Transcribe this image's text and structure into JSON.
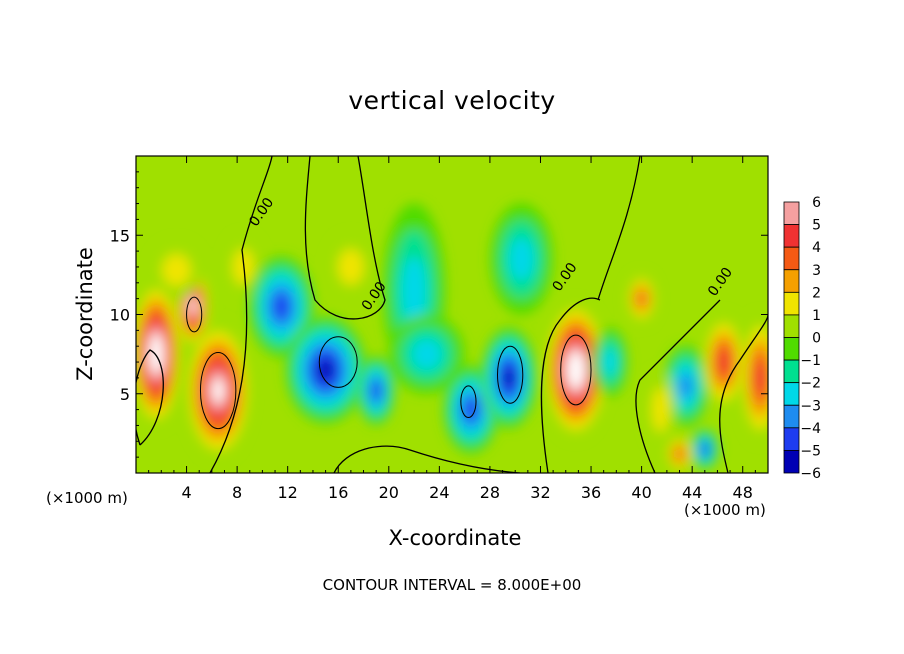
{
  "chart_data": {
    "type": "heatmap",
    "title": "vertical velocity",
    "xlabel": "X-coordinate",
    "ylabel": "Z-coordinate",
    "x_unit_label": "(×1000 m)",
    "contour_interval_text": "CONTOUR INTERVAL = 8.000E+00",
    "xlim": [
      0,
      50
    ],
    "ylim": [
      0,
      20
    ],
    "x_ticks": [
      4,
      8,
      12,
      16,
      20,
      24,
      28,
      32,
      36,
      40,
      44,
      48
    ],
    "y_ticks": [
      5,
      10,
      15
    ],
    "contour_labels": [
      {
        "text": "0.00",
        "x": 9.5,
        "y": 15.5
      },
      {
        "text": "0.00",
        "x": 18.4,
        "y": 10.2
      },
      {
        "text": "0.00",
        "x": 33.5,
        "y": 11.4
      },
      {
        "text": "0.00",
        "x": 45.8,
        "y": 11.1
      }
    ],
    "colorbar": {
      "ticks": [
        6,
        5,
        4,
        3,
        2,
        1,
        0,
        -1,
        -2,
        -3,
        -4,
        -5,
        -6
      ],
      "levels": [
        6,
        5,
        4,
        3,
        2,
        1,
        0,
        -1,
        -2,
        -3,
        -4,
        -5
      ],
      "colors": [
        "#f5a0a0",
        "#f03232",
        "#f55a14",
        "#f5a000",
        "#f0e400",
        "#a0e000",
        "#50dc00",
        "#00e090",
        "#00d8e8",
        "#1e8cf0",
        "#1e3cf0",
        "#0000b4"
      ],
      "below_min_color": "#7800a8"
    },
    "features": [
      {
        "x": 1.6,
        "y": 7.5,
        "rx": 2.0,
        "ry": 4.6,
        "value": 7.5
      },
      {
        "x": 4.5,
        "y": 10.5,
        "rx": 1.3,
        "ry": 2.6,
        "value": 7.0
      },
      {
        "x": 6.5,
        "y": 5.2,
        "rx": 2.6,
        "ry": 4.3,
        "value": 7.0
      },
      {
        "x": 3.2,
        "y": 12.8,
        "rx": 2.0,
        "ry": 1.8,
        "value": 2.0
      },
      {
        "x": 8.5,
        "y": 13.0,
        "rx": 1.5,
        "ry": 2.0,
        "value": 1.2
      },
      {
        "x": 17.0,
        "y": 13.0,
        "rx": 1.8,
        "ry": 2.0,
        "value": 1.8
      },
      {
        "x": 11.5,
        "y": 10.5,
        "rx": 2.6,
        "ry": 3.2,
        "value": -5.0
      },
      {
        "x": 15.0,
        "y": 6.5,
        "rx": 3.2,
        "ry": 3.4,
        "value": -5.8
      },
      {
        "x": 19.0,
        "y": 5.2,
        "rx": 1.5,
        "ry": 2.2,
        "value": -5.0
      },
      {
        "x": 22.0,
        "y": 11.5,
        "rx": 2.5,
        "ry": 5.5,
        "value": -2.2
      },
      {
        "x": 23.0,
        "y": 7.5,
        "rx": 3.0,
        "ry": 2.5,
        "value": -2.5
      },
      {
        "x": 26.5,
        "y": 4.0,
        "rx": 2.2,
        "ry": 2.8,
        "value": -4.8
      },
      {
        "x": 29.5,
        "y": 6.0,
        "rx": 2.2,
        "ry": 3.2,
        "value": -6.0
      },
      {
        "x": 30.5,
        "y": 13.5,
        "rx": 2.5,
        "ry": 3.5,
        "value": -2.5
      },
      {
        "x": 34.8,
        "y": 6.5,
        "rx": 2.5,
        "ry": 4.3,
        "value": 7.2
      },
      {
        "x": 37.5,
        "y": 7.0,
        "rx": 1.4,
        "ry": 2.2,
        "value": -3.0
      },
      {
        "x": 40.0,
        "y": 11.0,
        "rx": 1.2,
        "ry": 1.6,
        "value": 3.5
      },
      {
        "x": 43.5,
        "y": 5.5,
        "rx": 1.8,
        "ry": 2.6,
        "value": -3.5
      },
      {
        "x": 45.0,
        "y": 1.5,
        "rx": 1.1,
        "ry": 1.3,
        "value": -4.5
      },
      {
        "x": 43.0,
        "y": 1.2,
        "rx": 1.1,
        "ry": 1.2,
        "value": 4.0
      },
      {
        "x": 46.5,
        "y": 7.0,
        "rx": 1.7,
        "ry": 3.0,
        "value": 4.5
      },
      {
        "x": 49.4,
        "y": 6.0,
        "rx": 1.6,
        "ry": 4.0,
        "value": 5.0
      },
      {
        "x": 41.5,
        "y": 4.0,
        "rx": 1.2,
        "ry": 2.5,
        "value": 1.5
      }
    ]
  }
}
